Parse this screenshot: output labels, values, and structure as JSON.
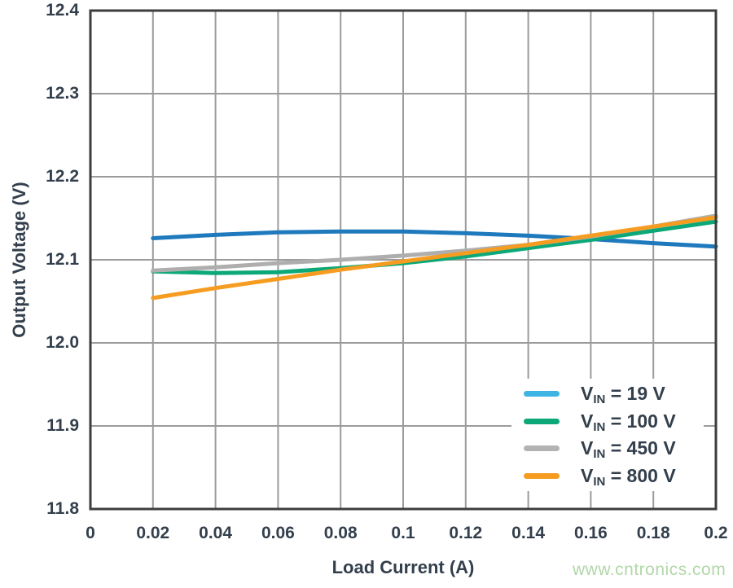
{
  "page": {
    "watermark_text": "www.cntronics.com",
    "watermark_color": "#b2d7a9",
    "background": "#ffffff",
    "text_color": "#333f4c",
    "grid_color": "#9b9b9b",
    "border_color": "#3d3d3d"
  },
  "chart_data": {
    "type": "line",
    "title": "",
    "xlabel": "Load Current (A)",
    "ylabel": "Output Voltage (V)",
    "xlim": [
      0,
      0.2
    ],
    "ylim": [
      11.8,
      12.4
    ],
    "grid": true,
    "legend_position": "lower right",
    "x_ticks": [
      {
        "value": 0,
        "label": "0"
      },
      {
        "value": 0.02,
        "label": "0.02"
      },
      {
        "value": 0.04,
        "label": "0.04"
      },
      {
        "value": 0.06,
        "label": "0.06"
      },
      {
        "value": 0.08,
        "label": "0.08"
      },
      {
        "value": 0.1,
        "label": "0.1"
      },
      {
        "value": 0.12,
        "label": "0.12"
      },
      {
        "value": 0.14,
        "label": "0.14"
      },
      {
        "value": 0.16,
        "label": "0.16"
      },
      {
        "value": 0.18,
        "label": "0.18"
      },
      {
        "value": 0.2,
        "label": "0.2"
      }
    ],
    "y_ticks": [
      {
        "value": 11.8,
        "label": "11.8"
      },
      {
        "value": 11.9,
        "label": "11.9"
      },
      {
        "value": 12.0,
        "label": "12.0"
      },
      {
        "value": 12.1,
        "label": "12.1"
      },
      {
        "value": 12.2,
        "label": "12.2"
      },
      {
        "value": 12.3,
        "label": "12.3"
      },
      {
        "value": 12.4,
        "label": "12.4"
      }
    ],
    "x": [
      0.02,
      0.04,
      0.06,
      0.08,
      0.1,
      0.12,
      0.14,
      0.16,
      0.18,
      0.2
    ],
    "series": [
      {
        "name": "VIN = 19 V",
        "label_prefix": "V",
        "label_sub": "IN",
        "label_rest": " = 19 V",
        "line_color": "#1e79bd",
        "legend_color": "#3cb5e3",
        "values": [
          12.126,
          12.13,
          12.133,
          12.134,
          12.134,
          12.132,
          12.129,
          12.125,
          12.12,
          12.116
        ]
      },
      {
        "name": "VIN = 100 V",
        "label_prefix": "V",
        "label_sub": "IN",
        "label_rest": " = 100 V",
        "line_color": "#0ca878",
        "legend_color": "#0ca878",
        "values": [
          12.086,
          12.084,
          12.085,
          12.09,
          12.096,
          12.104,
          12.114,
          12.124,
          12.135,
          12.146
        ]
      },
      {
        "name": "VIN = 450 V",
        "label_prefix": "V",
        "label_sub": "IN",
        "label_rest": " = 450 V",
        "line_color": "#aeaeae",
        "legend_color": "#b3b3b3",
        "values": [
          12.087,
          12.091,
          12.096,
          12.1,
          12.105,
          12.111,
          12.118,
          12.128,
          12.14,
          12.153
        ]
      },
      {
        "name": "VIN = 800 V",
        "label_prefix": "V",
        "label_sub": "IN",
        "label_rest": " = 800 V",
        "line_color": "#f59c21",
        "legend_color": "#f59c21",
        "values": [
          12.054,
          12.066,
          12.077,
          12.088,
          12.098,
          12.108,
          12.118,
          12.129,
          12.14,
          12.151
        ]
      }
    ]
  }
}
